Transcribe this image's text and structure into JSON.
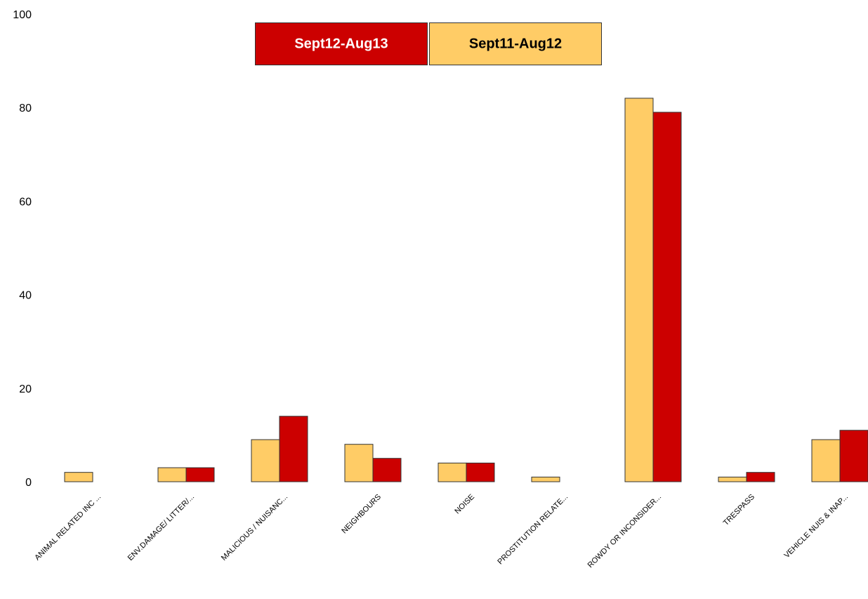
{
  "chart_data": {
    "type": "bar",
    "categories": [
      "ANIMAL RELATED INC ...",
      "ENV.DAMAGE/ LITTER/...",
      "MALICIOUS / NUISANC...",
      "NEIGHBOURS",
      "NOISE",
      "PROSTITUTION RELATE...",
      "ROWDY OR INCONSIDER...",
      "TRESPASS",
      "VEHICLE NUIS & INAP..."
    ],
    "series": [
      {
        "name": "Sept11-Aug12",
        "color": "#ffcc66",
        "values": [
          2,
          3,
          9,
          8,
          4,
          1,
          82,
          1,
          9
        ]
      },
      {
        "name": "Sept12-Aug13",
        "color": "#cc0000",
        "values": [
          0,
          3,
          14,
          5,
          4,
          0,
          79,
          2,
          11
        ]
      }
    ],
    "ylim": [
      0,
      100
    ],
    "yticks": [
      0,
      20,
      40,
      60,
      80,
      100
    ],
    "legend": "top"
  }
}
